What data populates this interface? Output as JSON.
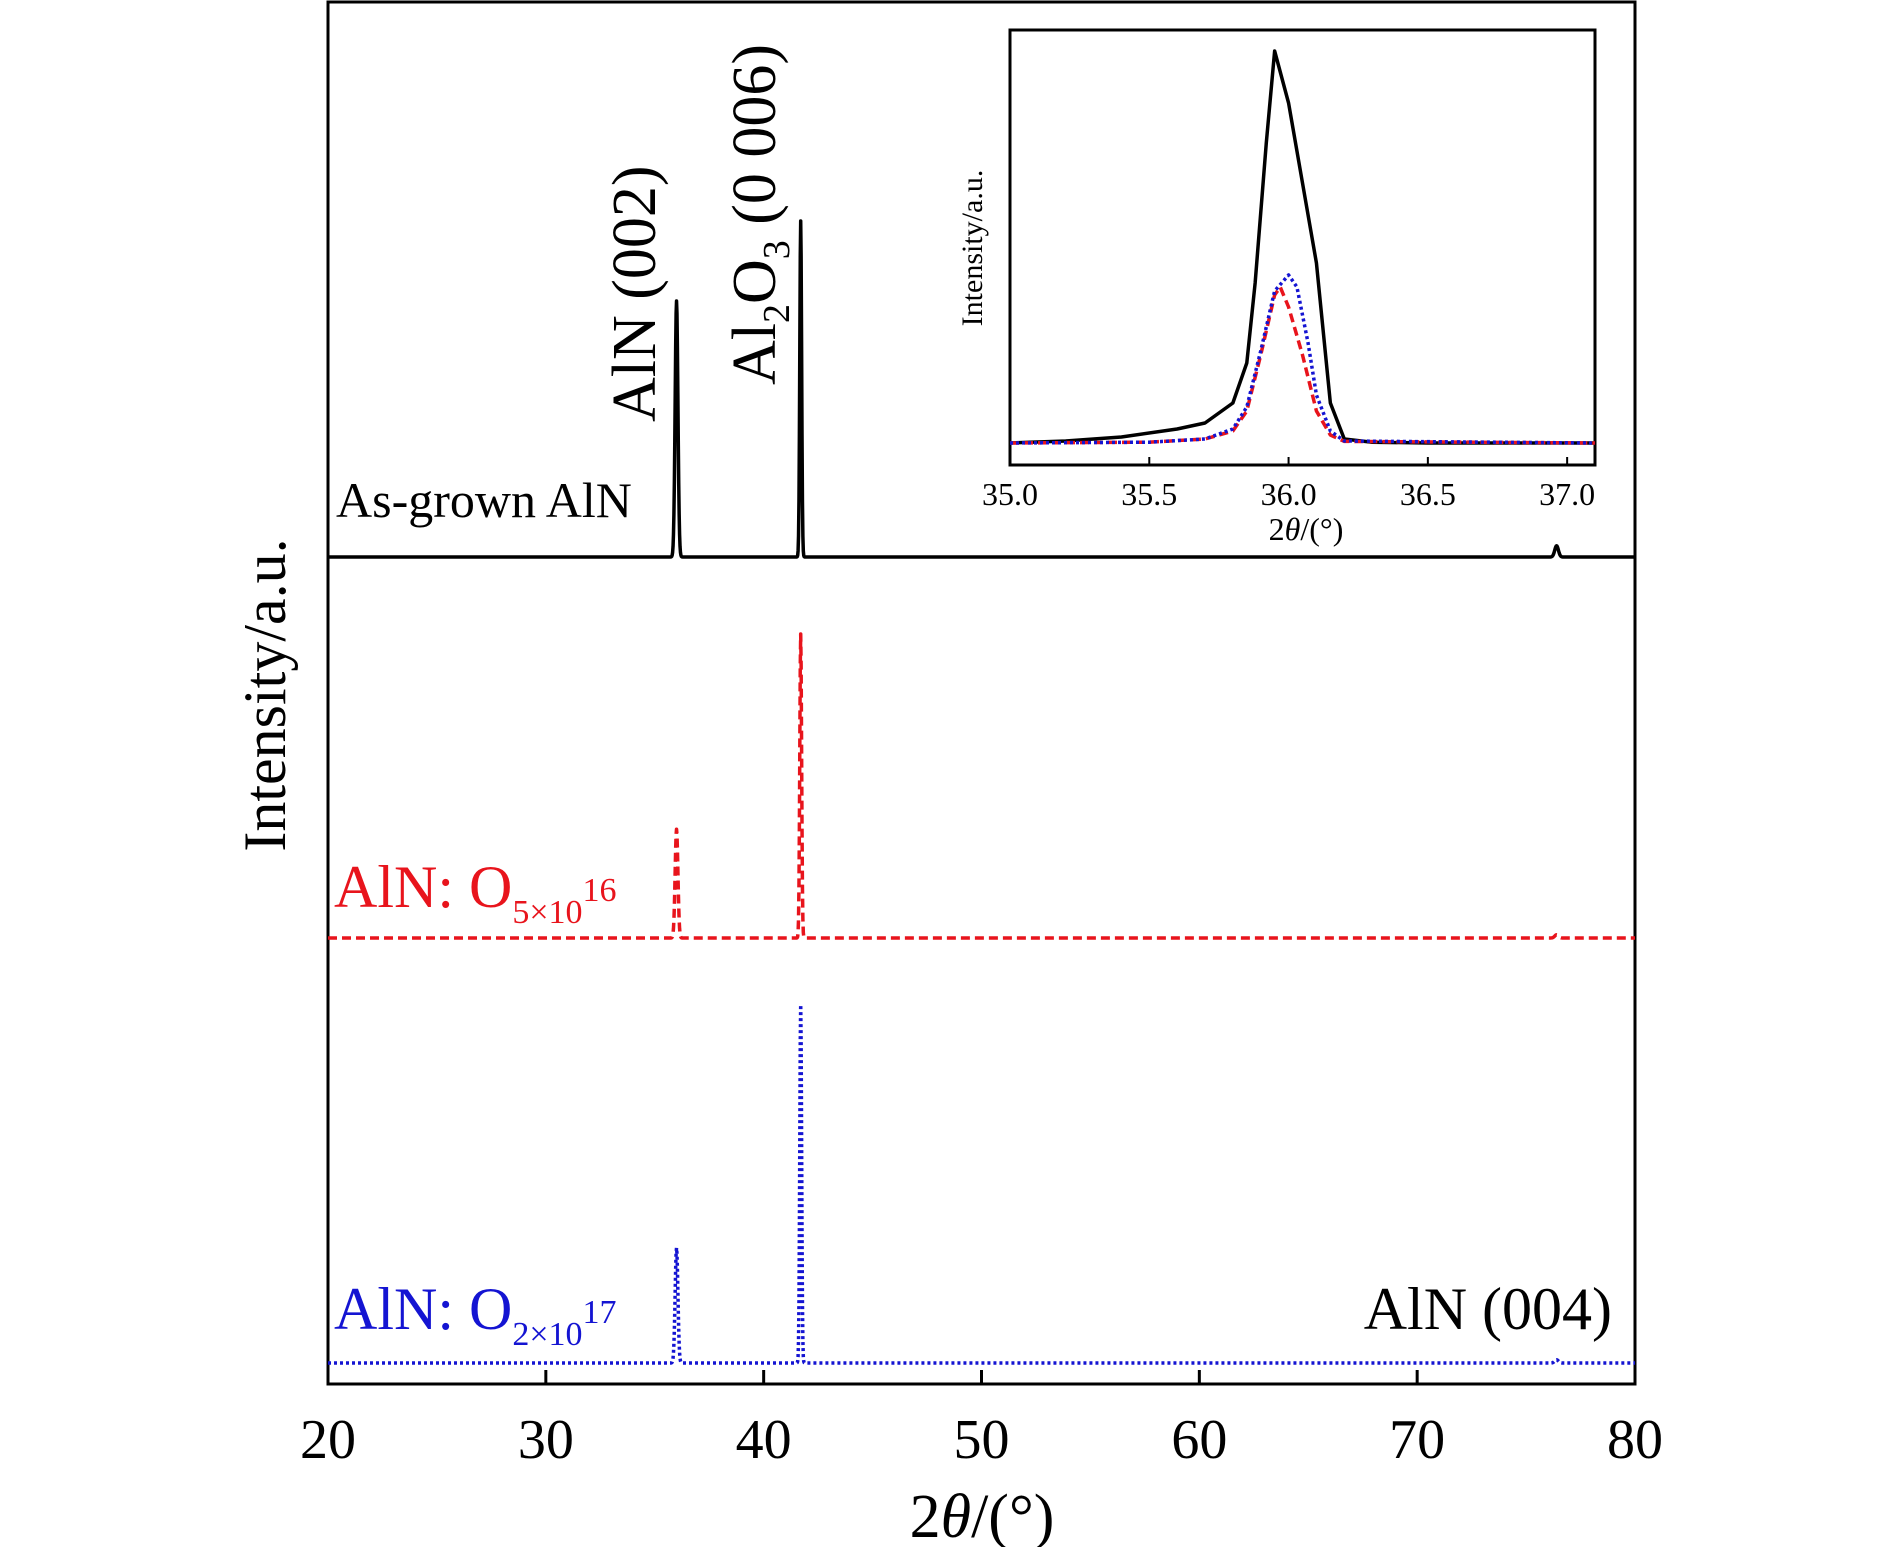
{
  "chart_data": [
    {
      "id": "main",
      "type": "line",
      "xlabel_prefix": "2",
      "xlabel_theta": "θ",
      "xlabel_suffix": "/(°)",
      "ylabel": "Intensity/a.u.",
      "xlim": [
        20,
        80
      ],
      "xticks": [
        "20",
        "30",
        "40",
        "50",
        "60",
        "70",
        "80"
      ],
      "grid": false,
      "annotations": {
        "aln002": "AlN (002)",
        "al2o3_a": "Al",
        "al2o3_b": "2",
        "al2o3_c": "O",
        "al2o3_d": "3",
        "al2o3_e": " (0 006)",
        "aln004": "AlN (004)"
      },
      "series": [
        {
          "key": "asgrown",
          "label": "As-grown AlN",
          "label_main": "As-grown AlN",
          "label_sub": "",
          "color": "#000000",
          "dash": "solid",
          "peaks": [
            {
              "x": 36.0,
              "height": 0.8
            },
            {
              "x": 41.7,
              "height": 1.05
            },
            {
              "x": 76.4,
              "height": 0.035
            }
          ]
        },
        {
          "key": "o5e16",
          "label_main": "AlN: O",
          "label_sub": "5×10",
          "label_sup": "16",
          "color": "#e8141c",
          "dash": "dash",
          "peaks": [
            {
              "x": 36.0,
              "height": 0.34
            },
            {
              "x": 41.7,
              "height": 0.95
            },
            {
              "x": 76.4,
              "height": 0.01
            }
          ]
        },
        {
          "key": "o2e17",
          "label_main": "AlN: O",
          "label_sub": "2×10",
          "label_sup": "17",
          "color": "#1414d2",
          "dash": "dot",
          "peaks": [
            {
              "x": 36.0,
              "height": 0.36
            },
            {
              "x": 41.7,
              "height": 1.12
            },
            {
              "x": 76.4,
              "height": 0.01
            }
          ]
        }
      ]
    },
    {
      "id": "inset",
      "type": "line",
      "xlabel_prefix": "2",
      "xlabel_theta": "θ",
      "xlabel_suffix": "/(°)",
      "ylabel": "Intensity/a.u.",
      "xlim": [
        35.0,
        37.1
      ],
      "xticks": [
        "35.0",
        "35.5",
        "36.0",
        "36.5",
        "37.0"
      ],
      "grid": false,
      "series": [
        {
          "key": "asgrown",
          "color": "#000000",
          "dash": "solid",
          "x": [
            35.0,
            35.2,
            35.4,
            35.6,
            35.7,
            35.8,
            35.85,
            35.88,
            35.92,
            35.95,
            36.0,
            36.05,
            36.1,
            36.15,
            36.2,
            36.3,
            36.5,
            37.1
          ],
          "y": [
            0.0,
            0.005,
            0.015,
            0.035,
            0.05,
            0.1,
            0.2,
            0.4,
            0.75,
            0.98,
            0.85,
            0.65,
            0.45,
            0.1,
            0.01,
            0.002,
            0.0,
            0.0
          ]
        },
        {
          "key": "o5e16",
          "color": "#e8141c",
          "dash": "dash",
          "x": [
            35.0,
            35.5,
            35.7,
            35.8,
            35.85,
            35.9,
            35.95,
            35.97,
            36.0,
            36.05,
            36.1,
            36.15,
            36.2,
            37.1
          ],
          "y": [
            0.0,
            0.002,
            0.01,
            0.03,
            0.08,
            0.22,
            0.37,
            0.39,
            0.34,
            0.22,
            0.08,
            0.02,
            0.004,
            0.0
          ]
        },
        {
          "key": "o2e17",
          "color": "#1414d2",
          "dash": "dot",
          "x": [
            35.0,
            35.5,
            35.7,
            35.8,
            35.85,
            35.9,
            35.95,
            36.0,
            36.03,
            36.07,
            36.1,
            36.15,
            36.2,
            37.1
          ],
          "y": [
            0.0,
            0.002,
            0.01,
            0.035,
            0.09,
            0.23,
            0.38,
            0.42,
            0.39,
            0.25,
            0.12,
            0.03,
            0.005,
            0.0
          ]
        }
      ]
    }
  ]
}
